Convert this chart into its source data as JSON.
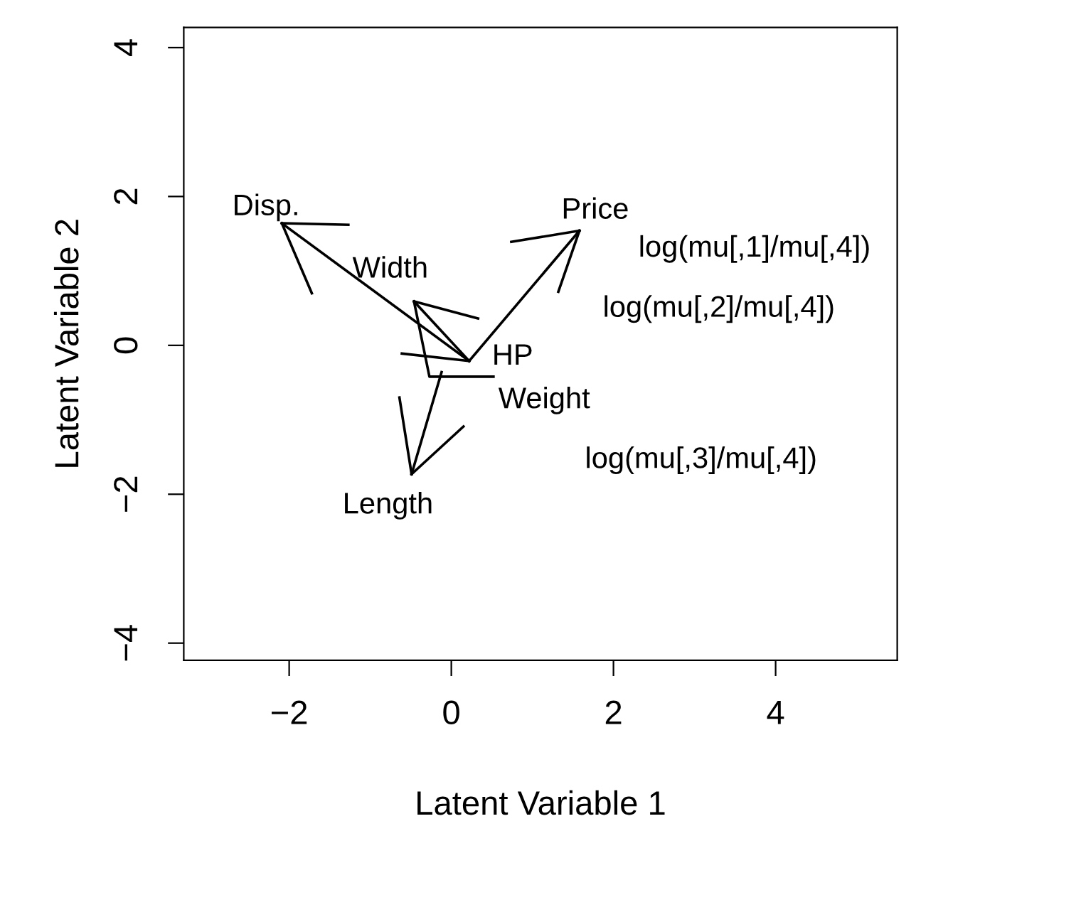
{
  "chart_data": {
    "type": "line",
    "xlabel": "Latent Variable 1",
    "ylabel": "Latent Variable 2",
    "xlim": [
      -3.3,
      5.5
    ],
    "ylim": [
      -4.23,
      4.27
    ],
    "xticks": [
      {
        "value": -2,
        "label": "−2"
      },
      0,
      2,
      4
    ],
    "yticks": [
      {
        "value": -4,
        "label": "−4"
      },
      {
        "value": -2,
        "label": "−2"
      },
      0,
      2,
      4
    ],
    "grid": false,
    "legend": false,
    "marker": "none",
    "line_style": "solid",
    "series": [
      {
        "color": "#000000",
        "x": [
          -2.09,
          -1.27
        ],
        "values": [
          1.64,
          1.62
        ]
      },
      {
        "color": "#000000",
        "x": [
          -2.09,
          -1.72
        ],
        "values": [
          1.64,
          0.7
        ]
      },
      {
        "color": "#000000",
        "x": [
          -2.09,
          0.22
        ],
        "values": [
          1.64,
          -0.21
        ]
      },
      {
        "color": "#000000",
        "x": [
          1.58,
          0.74
        ],
        "values": [
          1.54,
          1.39
        ]
      },
      {
        "color": "#000000",
        "x": [
          1.58,
          1.32
        ],
        "values": [
          1.54,
          0.72
        ]
      },
      {
        "color": "#000000",
        "x": [
          1.58,
          0.22
        ],
        "values": [
          1.54,
          -0.21
        ]
      },
      {
        "color": "#000000",
        "x": [
          -0.46,
          0.33
        ],
        "values": [
          0.59,
          0.36
        ]
      },
      {
        "color": "#000000",
        "x": [
          -0.46,
          -0.27,
          0.52
        ],
        "values": [
          0.59,
          -0.42,
          -0.42
        ]
      },
      {
        "color": "#000000",
        "x": [
          -0.46,
          0.22
        ],
        "values": [
          0.59,
          -0.21
        ]
      },
      {
        "color": "#000000",
        "x": [
          -0.61,
          0.22
        ],
        "values": [
          -0.11,
          -0.21
        ]
      },
      {
        "color": "#000000",
        "x": [
          -0.49,
          -0.64
        ],
        "values": [
          -1.73,
          -0.7
        ]
      },
      {
        "color": "#000000",
        "x": [
          -0.49,
          0.15
        ],
        "values": [
          -1.73,
          -1.09
        ]
      },
      {
        "color": "#000000",
        "x": [
          -0.49,
          -0.12
        ],
        "values": [
          -1.73,
          -0.36
        ]
      }
    ],
    "annotations": [
      {
        "text": "Disp.",
        "x": -2.09,
        "y": 1.64
      },
      {
        "text": "Price",
        "x": 1.58,
        "y": 1.54
      },
      {
        "text": "Width",
        "x": -0.46,
        "y": 0.59
      },
      {
        "text": "HP",
        "x": 0.22,
        "y": -0.21
      },
      {
        "text": "Weight",
        "x": 0.22,
        "y": -0.21
      },
      {
        "text": "Length",
        "x": -0.49,
        "y": -1.73
      },
      "log(mu[,1]/mu[,4])",
      "log(mu[,2]/mu[,4])",
      "log(mu[,3]/mu[,4])"
    ]
  }
}
